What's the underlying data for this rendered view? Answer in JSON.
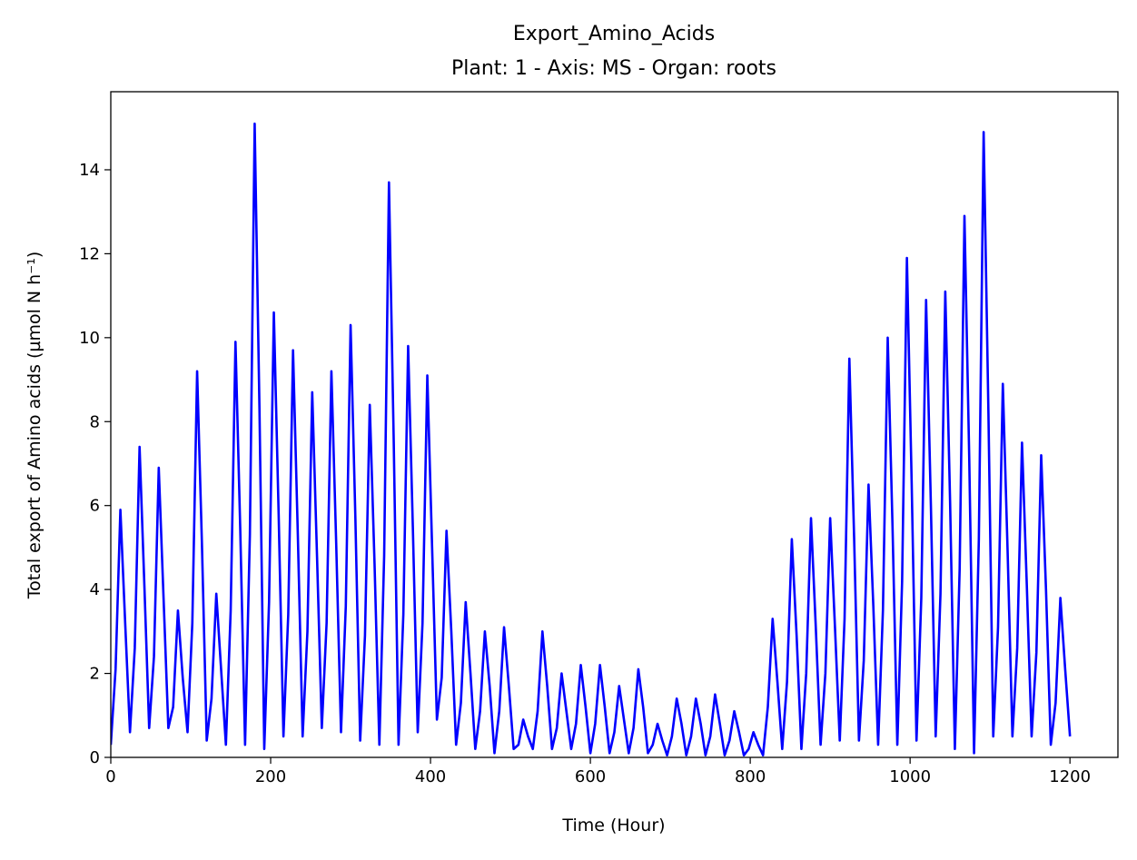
{
  "chart_data": {
    "type": "line",
    "title": "Export_Amino_Acids",
    "subtitle": "Plant: 1 - Axis: MS - Organ: roots",
    "x_label": "Time (Hour)",
    "y_label": "Total export of Amino acids (µmol N h⁻¹)",
    "xlim": [
      0,
      1260
    ],
    "xticks": [
      0,
      200,
      400,
      600,
      800,
      1000,
      1200
    ],
    "ylim": [
      0,
      15.86
    ],
    "yticks": [
      0,
      2,
      4,
      6,
      8,
      10,
      12,
      14
    ],
    "grid": false,
    "x": [
      0,
      6,
      12,
      18,
      24,
      30,
      36,
      42,
      48,
      54,
      60,
      66,
      72,
      78,
      84,
      90,
      96,
      102,
      108,
      114,
      120,
      126,
      132,
      138,
      144,
      150,
      156,
      162,
      168,
      174,
      180,
      186,
      192,
      198,
      204,
      210,
      216,
      222,
      228,
      234,
      240,
      246,
      252,
      258,
      264,
      270,
      276,
      282,
      288,
      294,
      300,
      306,
      312,
      318,
      324,
      330,
      336,
      342,
      348,
      354,
      360,
      366,
      372,
      378,
      384,
      390,
      396,
      402,
      408,
      414,
      420,
      426,
      432,
      438,
      444,
      450,
      456,
      462,
      468,
      474,
      480,
      486,
      492,
      498,
      504,
      510,
      516,
      522,
      528,
      534,
      540,
      546,
      552,
      558,
      564,
      570,
      576,
      582,
      588,
      594,
      600,
      606,
      612,
      618,
      624,
      630,
      636,
      642,
      648,
      654,
      660,
      666,
      672,
      678,
      684,
      690,
      696,
      702,
      708,
      714,
      720,
      726,
      732,
      738,
      744,
      750,
      756,
      762,
      768,
      774,
      780,
      786,
      792,
      798,
      804,
      810,
      816,
      822,
      828,
      834,
      840,
      846,
      852,
      858,
      864,
      870,
      876,
      882,
      888,
      894,
      900,
      906,
      912,
      918,
      924,
      930,
      936,
      942,
      948,
      954,
      960,
      966,
      972,
      978,
      984,
      990,
      996,
      1002,
      1008,
      1014,
      1020,
      1026,
      1032,
      1038,
      1044,
      1050,
      1056,
      1062,
      1068,
      1074,
      1080,
      1086,
      1092,
      1098,
      1104,
      1110,
      1116,
      1122,
      1128,
      1134,
      1140,
      1146,
      1152,
      1158,
      1164,
      1170,
      1176,
      1182,
      1188,
      1194,
      1200
    ],
    "series": [
      {
        "name": "Export_Amino_Acids",
        "color": "#0000ff",
        "values": [
          0.3,
          2.1,
          5.9,
          3.2,
          0.6,
          2.6,
          7.4,
          4.1,
          0.7,
          2.4,
          6.9,
          3.8,
          0.7,
          1.2,
          3.5,
          1.9,
          0.6,
          3.2,
          9.2,
          5.1,
          0.4,
          1.4,
          3.9,
          2.1,
          0.3,
          3.5,
          9.9,
          5.4,
          0.3,
          5.3,
          15.1,
          8.3,
          0.2,
          3.7,
          10.6,
          5.8,
          0.5,
          3.4,
          9.7,
          5.3,
          0.5,
          3.0,
          8.7,
          4.8,
          0.7,
          3.2,
          9.2,
          5.1,
          0.6,
          3.6,
          10.3,
          5.7,
          0.4,
          2.9,
          8.4,
          4.6,
          0.3,
          4.8,
          13.7,
          7.5,
          0.3,
          3.4,
          9.8,
          5.4,
          0.6,
          3.2,
          9.1,
          5.0,
          0.9,
          1.9,
          5.4,
          3.0,
          0.3,
          1.3,
          3.7,
          2.0,
          0.2,
          1.1,
          3.0,
          1.7,
          0.1,
          1.1,
          3.1,
          1.7,
          0.2,
          0.3,
          0.9,
          0.5,
          0.2,
          1.1,
          3.0,
          1.7,
          0.2,
          0.7,
          2.0,
          1.1,
          0.2,
          0.8,
          2.2,
          1.2,
          0.1,
          0.8,
          2.2,
          1.2,
          0.1,
          0.6,
          1.7,
          0.9,
          0.1,
          0.7,
          2.1,
          1.2,
          0.1,
          0.3,
          0.8,
          0.4,
          0.05,
          0.5,
          1.4,
          0.8,
          0.05,
          0.5,
          1.4,
          0.8,
          0.05,
          0.5,
          1.5,
          0.8,
          0.05,
          0.4,
          1.1,
          0.6,
          0.05,
          0.2,
          0.6,
          0.3,
          0.05,
          1.2,
          3.3,
          1.8,
          0.2,
          1.8,
          5.2,
          2.9,
          0.2,
          2.0,
          5.7,
          3.1,
          0.3,
          2.0,
          5.7,
          3.1,
          0.4,
          3.3,
          9.5,
          5.2,
          0.4,
          2.3,
          6.5,
          3.6,
          0.3,
          3.5,
          10.0,
          5.5,
          0.3,
          4.2,
          11.9,
          6.5,
          0.4,
          3.8,
          10.9,
          6.0,
          0.5,
          3.9,
          11.1,
          6.1,
          0.2,
          4.5,
          12.9,
          7.1,
          0.1,
          5.2,
          14.9,
          8.2,
          0.5,
          3.1,
          8.9,
          4.9,
          0.5,
          2.6,
          7.5,
          4.1,
          0.5,
          2.5,
          7.2,
          4.0,
          0.3,
          1.3,
          3.8,
          2.1,
          0.5
        ]
      }
    ]
  }
}
